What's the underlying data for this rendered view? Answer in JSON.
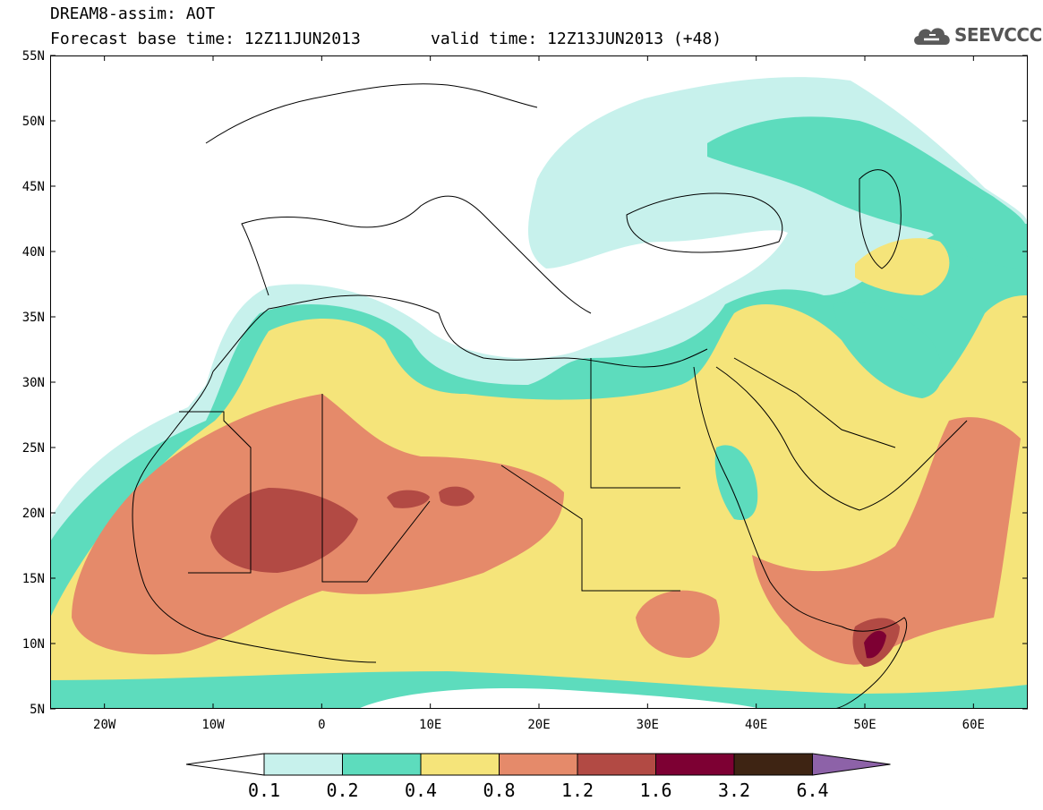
{
  "title": {
    "line1": "DREAM8-assim: AOT",
    "line2_base": "Forecast base time: 12Z11JUN2013",
    "line2_valid": "valid time: 12Z13JUN2013 (+48)"
  },
  "logo": {
    "text": "SEEVCCC",
    "icon": "cloud-icon"
  },
  "map": {
    "lat_labels": [
      "55N",
      "50N",
      "45N",
      "40N",
      "35N",
      "30N",
      "25N",
      "20N",
      "15N",
      "10N",
      "5N"
    ],
    "lon_labels": [
      "20W",
      "10W",
      "0",
      "10E",
      "20E",
      "30E",
      "40E",
      "50E",
      "60E"
    ],
    "lat_range": [
      5,
      55
    ],
    "lon_range": [
      -25,
      65
    ]
  },
  "legend": {
    "values": [
      "0.1",
      "0.2",
      "0.4",
      "0.8",
      "1.2",
      "1.6",
      "3.2",
      "6.4"
    ],
    "colors": [
      "#ffffff",
      "#c7f1ec",
      "#5ddcbd",
      "#f5e47a",
      "#e58a6a",
      "#b24a44",
      "#7d0033",
      "#3e2413",
      "#8d62a8"
    ]
  }
}
